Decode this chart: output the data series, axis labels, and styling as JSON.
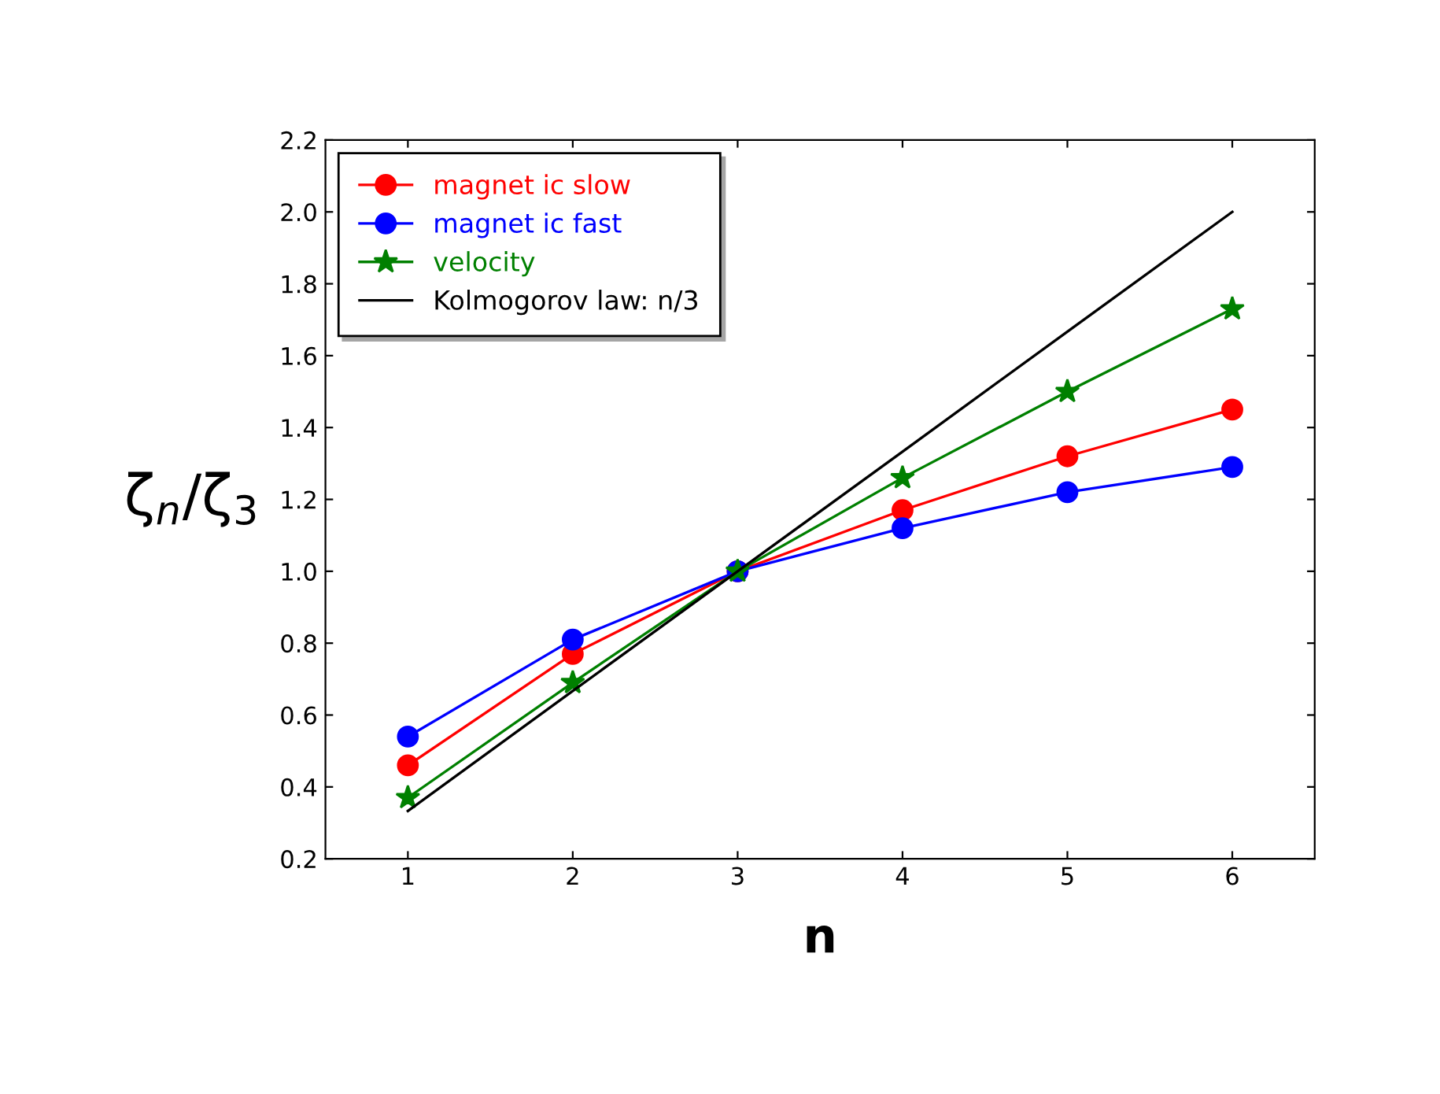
{
  "chart_data": {
    "type": "line",
    "xlabel": "n",
    "ylabel": "ζ$_{n}$/ζ$_{3}$",
    "x": [
      1,
      2,
      3,
      4,
      5,
      6
    ],
    "series": [
      {
        "name": "magnet ic slow",
        "color": "#ff0000",
        "values": [
          0.46,
          0.77,
          1.0,
          1.17,
          1.32,
          1.45
        ],
        "marker": "circle"
      },
      {
        "name": "magnet ic fast",
        "color": "#0000ff",
        "values": [
          0.54,
          0.81,
          1.0,
          1.12,
          1.22,
          1.29
        ],
        "marker": "circle"
      },
      {
        "name": "velocity",
        "color": "#008000",
        "values": [
          0.37,
          0.69,
          1.0,
          1.26,
          1.5,
          1.73
        ],
        "marker": "star"
      },
      {
        "name": "Kolmogorov law: n/3",
        "color": "#000000",
        "values": [
          0.333,
          0.667,
          1.0,
          1.333,
          1.667,
          2.0
        ],
        "marker": "none"
      }
    ],
    "xlim": [
      0.5,
      6.5
    ],
    "ylim": [
      0.2,
      2.2
    ],
    "xticks": [
      1,
      2,
      3,
      4,
      5,
      6
    ],
    "yticks": [
      0.2,
      0.4,
      0.6,
      0.8,
      {
        "value": 1,
        "label": "1.0"
      },
      1.2,
      1.4,
      1.6,
      1.8,
      {
        "value": 2,
        "label": "2.0"
      },
      2.2
    ],
    "grid": false,
    "legend": "top left"
  }
}
